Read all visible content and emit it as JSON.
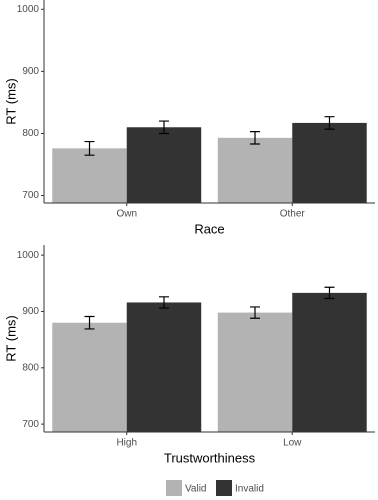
{
  "chart_data": [
    {
      "type": "bar",
      "ylabel": "RT (ms)",
      "xlabel": "Race",
      "categories": [
        "Own",
        "Other"
      ],
      "series": [
        {
          "name": "Valid",
          "color": "#b3b3b3",
          "values": [
            776,
            793
          ],
          "errors": [
            11,
            10
          ]
        },
        {
          "name": "Invalid",
          "color": "#333333",
          "values": [
            810,
            817
          ],
          "errors": [
            10,
            10
          ]
        }
      ],
      "ylim": [
        688,
        1015
      ],
      "yticks": [
        700,
        800,
        900,
        1000
      ]
    },
    {
      "type": "bar",
      "ylabel": "RT (ms)",
      "xlabel": "Trustworthiness",
      "categories": [
        "High",
        "Low"
      ],
      "series": [
        {
          "name": "Valid",
          "color": "#b3b3b3",
          "values": [
            880,
            898
          ],
          "errors": [
            11,
            10
          ]
        },
        {
          "name": "Invalid",
          "color": "#333333",
          "values": [
            916,
            933
          ],
          "errors": [
            10,
            10
          ]
        }
      ],
      "ylim": [
        686,
        1018
      ],
      "yticks": [
        700,
        800,
        900,
        1000
      ]
    }
  ]
}
